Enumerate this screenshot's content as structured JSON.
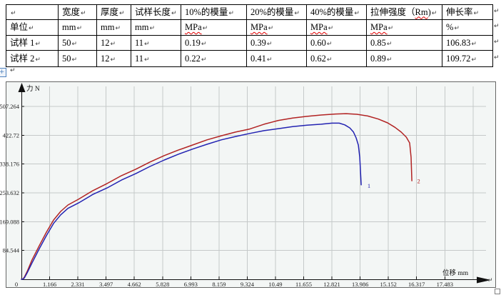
{
  "page": {
    "paragraph_mark": "↵",
    "anchor_glyph": "+"
  },
  "table": {
    "columns": [
      "",
      "宽度",
      "厚度",
      "试样长度",
      "10%的模量",
      "20%的模量",
      "40%的模量",
      "拉伸强度（Rm)",
      "伸长率"
    ],
    "rows": [
      [
        "单位",
        "mm",
        "mm",
        "mm",
        "MPa",
        "MPa",
        "MPa",
        "MPa",
        "%"
      ],
      [
        "试样 1",
        "50",
        "12",
        "11",
        "0.19",
        "0.39",
        "0.60",
        "0.85",
        "106.83"
      ],
      [
        "试样 2",
        "50",
        "12",
        "11",
        "0.22",
        "0.41",
        "0.62",
        "0.89",
        "109.72"
      ]
    ],
    "spellcheck_words": [
      "MPa",
      "Rm"
    ]
  },
  "chart_data": {
    "type": "line",
    "title": "",
    "xlabel": "位移 mm",
    "ylabel": "力 N",
    "xlim": [
      0,
      19.33
    ],
    "ylim": [
      0,
      570
    ],
    "grid": true,
    "legend": "curve end labels 1 and 2",
    "x_tick_values": [
      1.166,
      2.331,
      3.497,
      4.662,
      5.828,
      6.993,
      8.159,
      9.324,
      10.49,
      11.655,
      12.821,
      13.986,
      15.152,
      16.317,
      17.483
    ],
    "x_tick_labels": [
      "1.166",
      "2.331",
      "3.497",
      "4.662",
      "5.828",
      "6.993",
      "8.159",
      "9.324",
      "10.49",
      "11.655",
      "12.821",
      "13.986",
      "15.152",
      "16.317",
      "17.483"
    ],
    "x_grid_extra": [
      18.648
    ],
    "y_tick_values": [
      84.544,
      169.088,
      253.632,
      338.176,
      422.72,
      507.264
    ],
    "y_tick_labels": [
      "84.544",
      "169.088",
      "253.632",
      "338.176",
      "422.72",
      "507.264"
    ],
    "origin_label": "0",
    "colors": {
      "grid": "#c5c9c9",
      "axis": "#111111",
      "plot_bg": "#f3f6f5",
      "frame_border": "#666666",
      "tick_text": "#222222"
    },
    "series": [
      {
        "name": "1",
        "color": "#2323b2",
        "label_pos": [
          14.35,
          268
        ],
        "points": [
          [
            0,
            0
          ],
          [
            0.05,
            0
          ],
          [
            0.12,
            4
          ],
          [
            0.24,
            19
          ],
          [
            0.44,
            48
          ],
          [
            0.74,
            90
          ],
          [
            1.03,
            128
          ],
          [
            1.33,
            164
          ],
          [
            1.62,
            189
          ],
          [
            1.92,
            208
          ],
          [
            2.36,
            224
          ],
          [
            2.95,
            249
          ],
          [
            3.54,
            268
          ],
          [
            4.13,
            291
          ],
          [
            4.72,
            310
          ],
          [
            5.31,
            331
          ],
          [
            5.9,
            350
          ],
          [
            6.48,
            367
          ],
          [
            7.07,
            382
          ],
          [
            7.66,
            396
          ],
          [
            8.25,
            409
          ],
          [
            8.84,
            419
          ],
          [
            9.43,
            428
          ],
          [
            10.02,
            436
          ],
          [
            10.61,
            442
          ],
          [
            11.2,
            448
          ],
          [
            11.79,
            452
          ],
          [
            12.38,
            455
          ],
          [
            12.82,
            458
          ],
          [
            13.12,
            458
          ],
          [
            13.35,
            453
          ],
          [
            13.56,
            444
          ],
          [
            13.71,
            432
          ],
          [
            13.82,
            415
          ],
          [
            13.91,
            394
          ],
          [
            13.97,
            358
          ],
          [
            14.0,
            317
          ],
          [
            14.03,
            277
          ]
        ]
      },
      {
        "name": "2",
        "color": "#b22323",
        "label_pos": [
          16.4,
          282
        ],
        "points": [
          [
            0,
            0
          ],
          [
            0.05,
            0
          ],
          [
            0.12,
            6
          ],
          [
            0.24,
            23
          ],
          [
            0.44,
            57
          ],
          [
            0.74,
            99
          ],
          [
            1.03,
            138
          ],
          [
            1.33,
            174
          ],
          [
            1.62,
            199
          ],
          [
            1.92,
            218
          ],
          [
            2.36,
            235
          ],
          [
            2.95,
            260
          ],
          [
            3.54,
            281
          ],
          [
            4.13,
            304
          ],
          [
            4.72,
            323
          ],
          [
            5.31,
            344
          ],
          [
            5.9,
            363
          ],
          [
            6.48,
            379
          ],
          [
            7.07,
            394
          ],
          [
            7.66,
            409
          ],
          [
            8.25,
            421
          ],
          [
            8.84,
            432
          ],
          [
            9.43,
            441
          ],
          [
            10.02,
            455
          ],
          [
            10.61,
            466
          ],
          [
            11.2,
            473
          ],
          [
            11.79,
            478
          ],
          [
            12.38,
            482
          ],
          [
            12.97,
            485
          ],
          [
            13.41,
            486
          ],
          [
            13.85,
            484
          ],
          [
            14.3,
            479
          ],
          [
            14.74,
            470
          ],
          [
            15.12,
            459
          ],
          [
            15.42,
            446
          ],
          [
            15.68,
            432
          ],
          [
            15.89,
            417
          ],
          [
            16.03,
            400
          ],
          [
            16.09,
            358
          ],
          [
            16.12,
            289
          ]
        ]
      }
    ]
  }
}
